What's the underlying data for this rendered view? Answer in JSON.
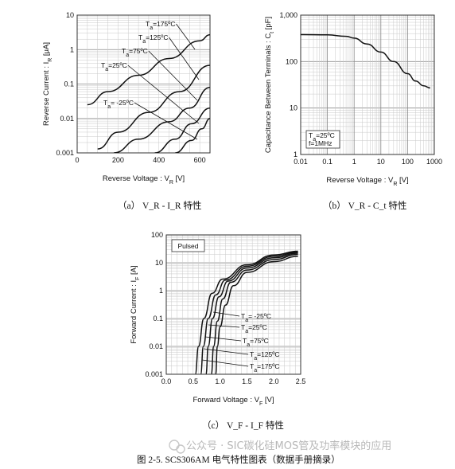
{
  "chart_data": [
    {
      "type": "line",
      "id": "a",
      "xlabel": "Reverse Voltage : V_R  [V]",
      "ylabel": "Reverse Current : I_R  [μA]",
      "xlim": [
        0,
        650
      ],
      "ylim": [
        0.001,
        10
      ],
      "yscale": "log",
      "xticks": [
        "0",
        "200",
        "400",
        "600"
      ],
      "yticks": [
        "0.001",
        "0.01",
        "0.1",
        "1",
        "10"
      ],
      "grid": true,
      "series": [
        {
          "name": "T_a=175ºC",
          "x": [
            50,
            150,
            300,
            450,
            600,
            650
          ],
          "y": [
            0.025,
            0.06,
            0.18,
            0.55,
            1.8,
            2.7
          ]
        },
        {
          "name": "T_a=125ºC",
          "x": [
            100,
            200,
            350,
            500,
            650
          ],
          "y": [
            0.0013,
            0.004,
            0.015,
            0.06,
            0.35
          ]
        },
        {
          "name": "T_a=75ºC",
          "x": [
            180,
            300,
            450,
            550,
            650
          ],
          "y": [
            0.001,
            0.0025,
            0.008,
            0.02,
            0.08
          ]
        },
        {
          "name": "T_a=25ºC",
          "x": [
            380,
            480,
            560,
            650
          ],
          "y": [
            0.001,
            0.0025,
            0.007,
            0.02
          ]
        },
        {
          "name": "T_a= -25ºC",
          "x": [
            480,
            560,
            610,
            650
          ],
          "y": [
            0.001,
            0.0023,
            0.005,
            0.01
          ]
        }
      ],
      "caption": "（a）  V_R - I_R  特性"
    },
    {
      "type": "line",
      "id": "b",
      "xlabel": "Reverse Voltage : V_R  [V]",
      "ylabel": "Capacitance Between Terminals : C_t  [pF]",
      "xscale": "log",
      "yscale": "log",
      "xlim": [
        0.01,
        1000
      ],
      "ylim": [
        1,
        1000
      ],
      "xticks": [
        "0.01",
        "0.1",
        "1",
        "10",
        "100",
        "1000"
      ],
      "yticks": [
        "1",
        "10",
        "100",
        "1,000"
      ],
      "grid": true,
      "series": [
        {
          "name": "",
          "x": [
            0.01,
            0.1,
            0.5,
            1,
            3,
            10,
            30,
            100,
            200,
            400,
            700
          ],
          "y": [
            380,
            375,
            350,
            320,
            240,
            160,
            100,
            55,
            38,
            30,
            27
          ]
        }
      ],
      "annotations": [
        "T_a=25ºC",
        "f=1MHz"
      ],
      "caption": "（b）  V_R - C_t  特性"
    },
    {
      "type": "line",
      "id": "c",
      "xlabel": "Forward Voltage : V_F  [V]",
      "ylabel": "Forward Current : I_F  [A]",
      "yscale": "log",
      "xlim": [
        0,
        2.5
      ],
      "ylim": [
        0.001,
        100
      ],
      "xticks": [
        "0.0",
        "0.5",
        "1.0",
        "1.5",
        "2.0",
        "2.5"
      ],
      "yticks": [
        "0.001",
        "0.01",
        "0.1",
        "1",
        "10",
        "100"
      ],
      "grid": true,
      "legend_box": "Pulsed",
      "series": [
        {
          "name": "T_a= -25ºC",
          "x": [
            0.92,
            0.95,
            1.0,
            1.1,
            1.25,
            1.5,
            2.0,
            2.45
          ],
          "y": [
            0.001,
            0.01,
            0.05,
            0.3,
            1.5,
            4.5,
            11,
            17
          ]
        },
        {
          "name": "T_a=25ºC",
          "x": [
            0.84,
            0.88,
            0.95,
            1.05,
            1.2,
            1.5,
            2.0,
            2.45
          ],
          "y": [
            0.001,
            0.01,
            0.08,
            0.5,
            2.0,
            5.5,
            13,
            20
          ]
        },
        {
          "name": "T_a=75ºC",
          "x": [
            0.74,
            0.78,
            0.86,
            0.98,
            1.15,
            1.5,
            2.0,
            2.45
          ],
          "y": [
            0.001,
            0.01,
            0.1,
            0.6,
            2.2,
            6.5,
            15,
            22
          ]
        },
        {
          "name": "T_a=125ºC",
          "x": [
            0.64,
            0.69,
            0.78,
            0.92,
            1.1,
            1.5,
            2.0,
            2.45
          ],
          "y": [
            0.001,
            0.01,
            0.1,
            0.7,
            2.4,
            7.5,
            17,
            24
          ]
        },
        {
          "name": "T_a=175ºC",
          "x": [
            0.54,
            0.6,
            0.7,
            0.85,
            1.05,
            1.5,
            2.0,
            2.45
          ],
          "y": [
            0.001,
            0.01,
            0.1,
            0.8,
            2.6,
            8.5,
            19,
            26
          ]
        }
      ],
      "caption": "（c）  V_F - I_F  特性"
    }
  ],
  "watermark": "公众号 · SIC碳化硅MOS管及功率模块的应用",
  "figure_caption": "图 2-5. SCS306AM  电气特性图表（数据手册摘录）"
}
